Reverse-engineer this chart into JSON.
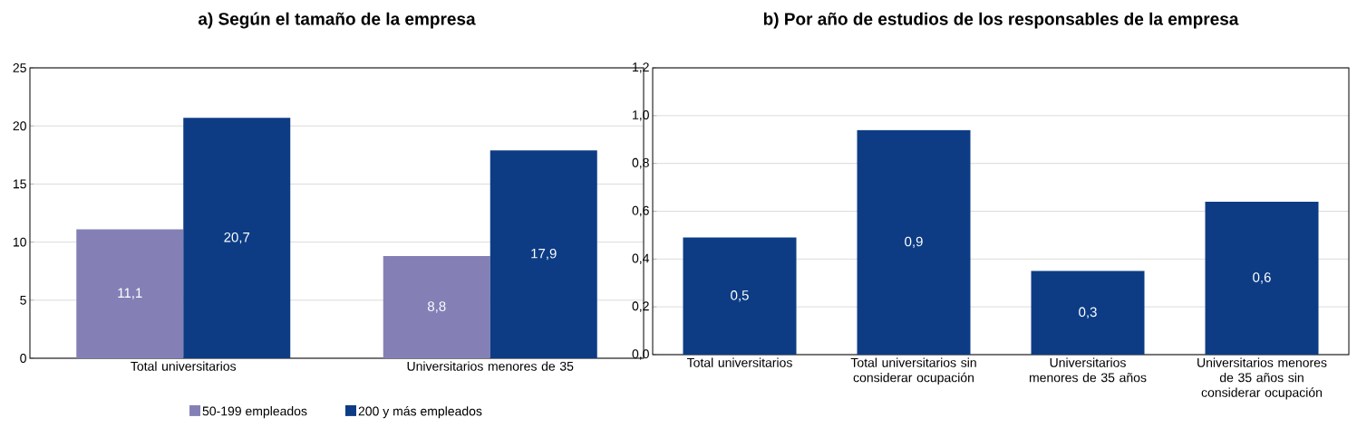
{
  "chart_data": [
    {
      "type": "bar",
      "title": "a)   Según el tamaño de la empresa",
      "categories": [
        "Total universitarios",
        "Universitarios menores de 35"
      ],
      "series": [
        {
          "name": "50-199 empleados",
          "color": "#8480b6",
          "values": [
            11.1,
            8.8
          ],
          "value_labels": [
            "11,1",
            "8,8"
          ]
        },
        {
          "name": "200 y más empleados",
          "color": "#0d3c85",
          "values": [
            20.7,
            17.9
          ],
          "value_labels": [
            "20,7",
            "17,9"
          ]
        }
      ],
      "ylim": [
        0,
        25
      ],
      "yticks": [
        0,
        5,
        10,
        15,
        20,
        25
      ],
      "grid": "y",
      "legend": "bottom"
    },
    {
      "type": "bar",
      "title": "b) Por año de estudios de los responsables de la empresa",
      "categories": [
        "Total universitarios",
        "Total universitarios sin considerar ocupación",
        "Universitarios menores de 35 años",
        "Universitarios menores de 35 años sin considerar ocupación"
      ],
      "series": [
        {
          "color": "#0d3c85",
          "values": [
            0.49,
            0.94,
            0.35,
            0.64
          ],
          "value_labels": [
            "0,5",
            "0,9",
            "0,3",
            "0,6"
          ]
        }
      ],
      "ylim": [
        0,
        1.2
      ],
      "yticks": [
        {
          "value": 0,
          "label": "0,0"
        },
        {
          "value": 0.2,
          "label": "0,2"
        },
        {
          "value": 0.4,
          "label": "0,4"
        },
        {
          "value": 0.6,
          "label": "0,6"
        },
        {
          "value": 0.8,
          "label": "0,8"
        },
        {
          "value": 1.0,
          "label": "1,0"
        },
        {
          "value": 1.2,
          "label": "1,2"
        }
      ],
      "grid": "y"
    }
  ]
}
